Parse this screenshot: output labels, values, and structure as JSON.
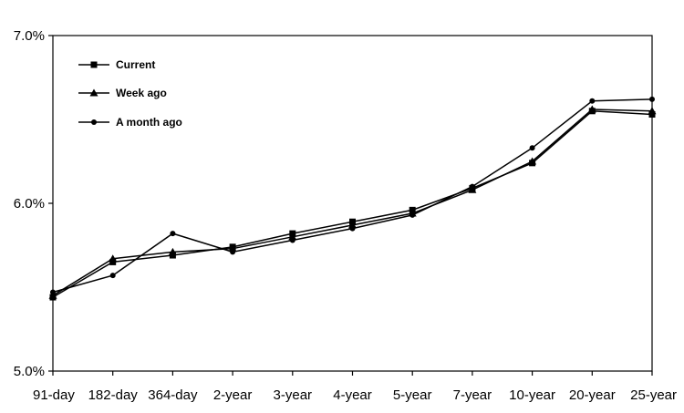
{
  "chart_data": {
    "type": "line",
    "categories": [
      "91-day",
      "182-day",
      "364-day",
      "2-year",
      "3-year",
      "4-year",
      "5-year",
      "7-year",
      "10-year",
      "20-year",
      "25-year"
    ],
    "y_tick_labels": [
      "5.0%",
      "6.0%",
      "7.0%"
    ],
    "y_ticks": [
      5.0,
      6.0,
      7.0
    ],
    "ylim": [
      5.0,
      7.0
    ],
    "grid": false,
    "legend_position": "top-left",
    "series": [
      {
        "name": "Current",
        "marker": "square",
        "values": [
          5.44,
          5.65,
          5.69,
          5.74,
          5.82,
          5.89,
          5.96,
          6.09,
          6.24,
          6.55,
          6.53
        ]
      },
      {
        "name": "Week ago",
        "marker": "triangle",
        "values": [
          5.45,
          5.67,
          5.71,
          5.73,
          5.8,
          5.87,
          5.94,
          6.08,
          6.25,
          6.56,
          6.55
        ]
      },
      {
        "name": "A month ago",
        "marker": "circle",
        "values": [
          5.47,
          5.57,
          5.82,
          5.71,
          5.78,
          5.85,
          5.93,
          6.1,
          6.33,
          6.61,
          6.62
        ]
      }
    ]
  }
}
